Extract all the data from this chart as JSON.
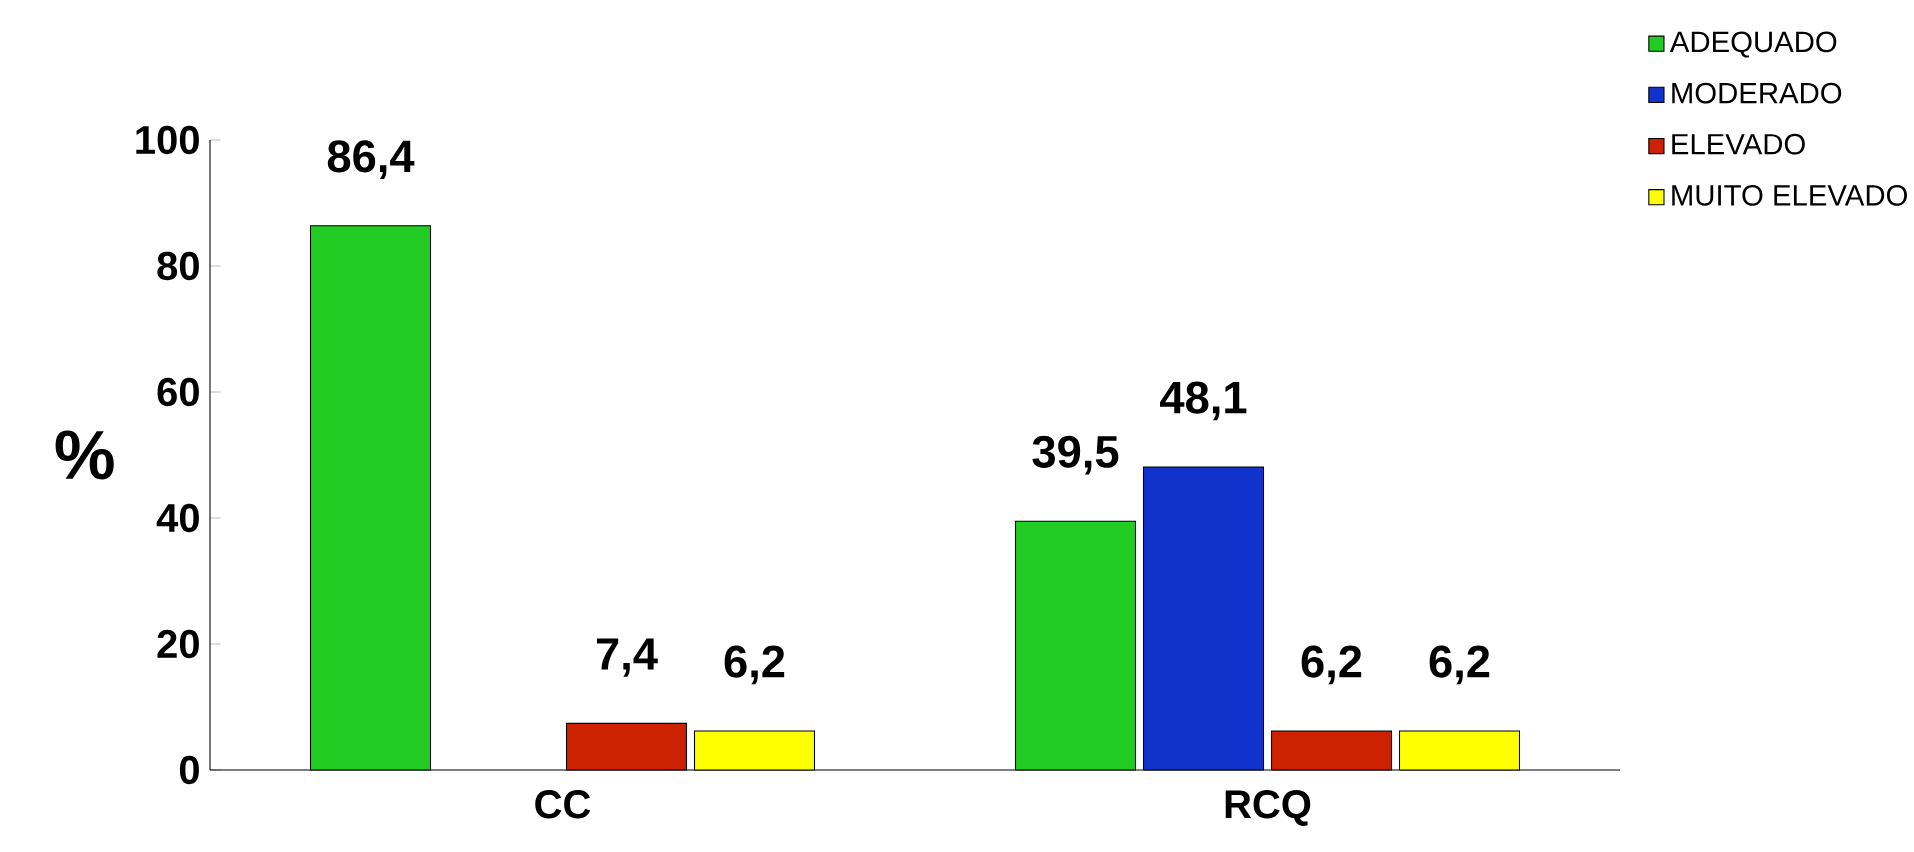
{
  "chart_data": {
    "type": "bar",
    "ylabel": "%",
    "categories": [
      "CC",
      "RCQ"
    ],
    "series": [
      {
        "name": "ADEQUADO",
        "color": "#22cc22",
        "values": [
          86.4,
          39.5
        ],
        "value_labels": [
          "86,4",
          "39,5"
        ]
      },
      {
        "name": "MODERADO",
        "color": "#1133cc",
        "values": [
          null,
          48.1
        ],
        "value_labels": [
          null,
          "48,1"
        ]
      },
      {
        "name": "ELEVADO",
        "color": "#cc2200",
        "values": [
          7.4,
          6.2
        ],
        "value_labels": [
          "7,4",
          "6,2"
        ]
      },
      {
        "name": "MUITO ELEVADO",
        "color": "#ffff00",
        "values": [
          6.2,
          6.2
        ],
        "value_labels": [
          "6,2",
          "6,2"
        ]
      }
    ],
    "ylim": [
      0,
      100
    ],
    "yticks": [
      0,
      20,
      40,
      60,
      80,
      100
    ],
    "legend": "top right",
    "grid": false
  }
}
